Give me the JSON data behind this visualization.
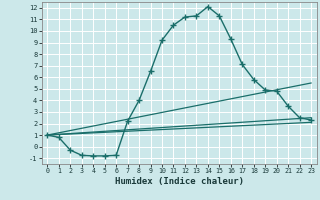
{
  "title": "",
  "xlabel": "Humidex (Indice chaleur)",
  "bg_color": "#cce8ea",
  "grid_color": "#ffffff",
  "line_color": "#1a6e6a",
  "xlim": [
    -0.5,
    23.5
  ],
  "ylim": [
    -1.5,
    12.5
  ],
  "xticks": [
    0,
    1,
    2,
    3,
    4,
    5,
    6,
    7,
    8,
    9,
    10,
    11,
    12,
    13,
    14,
    15,
    16,
    17,
    18,
    19,
    20,
    21,
    22,
    23
  ],
  "yticks": [
    -1,
    0,
    1,
    2,
    3,
    4,
    5,
    6,
    7,
    8,
    9,
    10,
    11,
    12
  ],
  "main_x": [
    0,
    1,
    2,
    3,
    4,
    5,
    6,
    7,
    8,
    9,
    10,
    11,
    12,
    13,
    14,
    15,
    16,
    17,
    18,
    19,
    20,
    21,
    22,
    23
  ],
  "main_y": [
    1,
    0.8,
    -0.3,
    -0.75,
    -0.8,
    -0.8,
    -0.75,
    2.2,
    4.0,
    6.5,
    9.2,
    10.5,
    11.2,
    11.3,
    12.1,
    11.3,
    9.3,
    7.1,
    5.8,
    4.9,
    4.8,
    3.5,
    2.5,
    2.3
  ],
  "line2_x": [
    0,
    23
  ],
  "line2_y": [
    1.0,
    5.5
  ],
  "line3_x": [
    0,
    23
  ],
  "line3_y": [
    1.0,
    2.5
  ],
  "line4_x": [
    0,
    23
  ],
  "line4_y": [
    1.0,
    2.1
  ]
}
